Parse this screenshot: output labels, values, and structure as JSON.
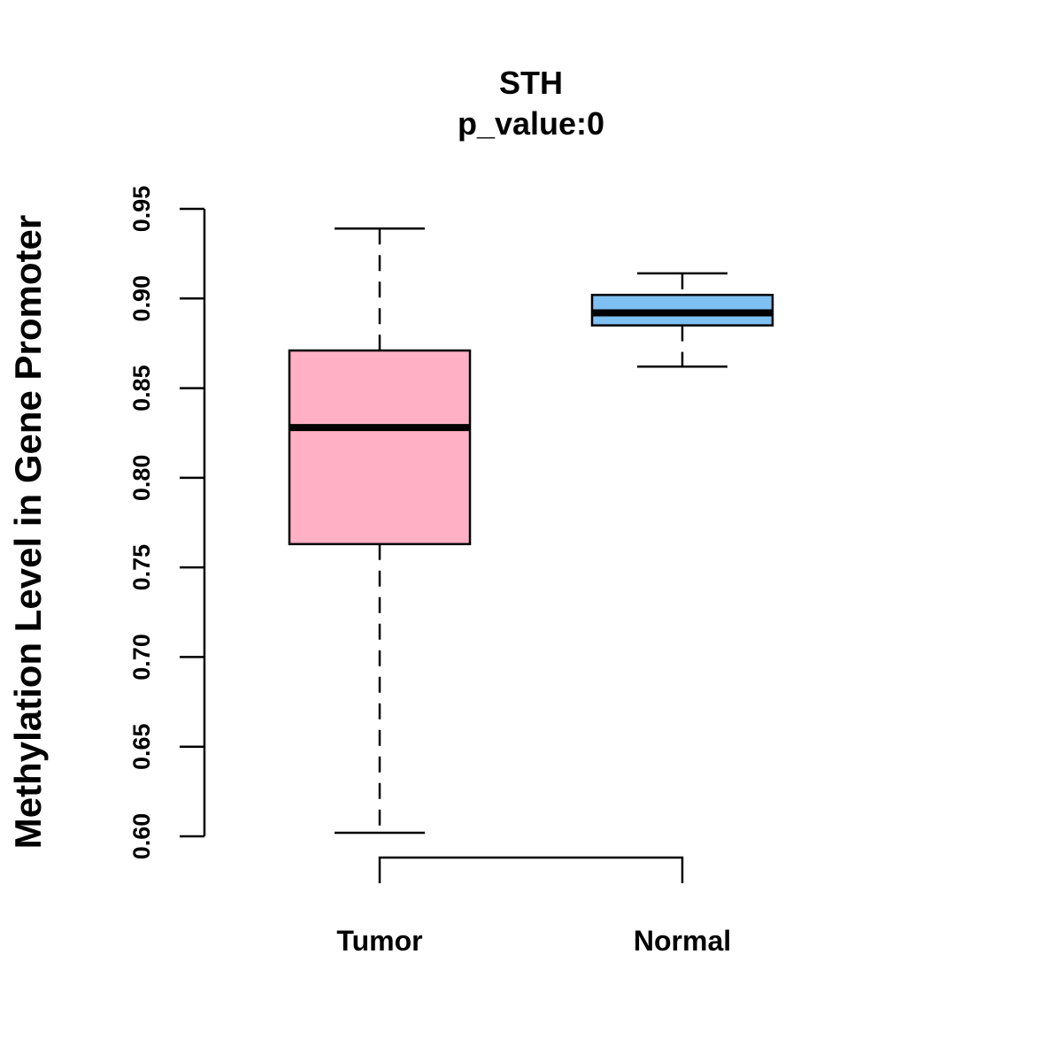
{
  "chart_data": {
    "type": "boxplot",
    "title": "STH",
    "subtitle": "p_value:0",
    "ylabel": "Methylation Level in Gene Promoter",
    "xlabel": "",
    "ylim": [
      0.6,
      0.95
    ],
    "yticks": [
      0.6,
      0.65,
      0.7,
      0.75,
      0.8,
      0.85,
      0.9,
      0.95
    ],
    "ytick_labels": [
      "0.60",
      "0.65",
      "0.70",
      "0.75",
      "0.80",
      "0.85",
      "0.90",
      "0.95"
    ],
    "grid": false,
    "categories": [
      "Tumor",
      "Normal"
    ],
    "boxes": [
      {
        "category": "Tumor",
        "min": 0.602,
        "q1": 0.763,
        "median": 0.828,
        "q3": 0.871,
        "max": 0.939,
        "color": "#FFB0C4"
      },
      {
        "category": "Normal",
        "min": 0.862,
        "q1": 0.885,
        "median": 0.892,
        "q3": 0.902,
        "max": 0.914,
        "color": "#7EC0F2"
      }
    ],
    "comparison_bracket": {
      "from": "Tumor",
      "to": "Normal"
    }
  }
}
